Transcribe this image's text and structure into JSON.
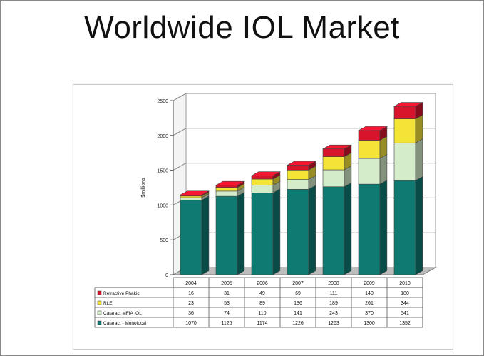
{
  "slide": {
    "title": "Worldwide IOL Market"
  },
  "chart_data": {
    "type": "bar",
    "stacked": true,
    "three_d": true,
    "title": "",
    "xlabel": "",
    "ylabel": "$millions",
    "ylim": [
      0,
      2500
    ],
    "yticks": [
      0,
      500,
      1000,
      1500,
      2000,
      2500
    ],
    "grid": true,
    "legend": "data-table-left",
    "categories": [
      "2004",
      "2005",
      "2006",
      "2007",
      "2008",
      "2009",
      "2010"
    ],
    "series": [
      {
        "name": "Cataract - Monofocal",
        "color": "#0f7a72",
        "values": [
          1070,
          1126,
          1174,
          1226,
          1263,
          1300,
          1352
        ]
      },
      {
        "name": "Cataract MFIA IOL",
        "color": "#d4ecca",
        "values": [
          36,
          74,
          110,
          141,
          243,
          370,
          541
        ]
      },
      {
        "name": "RLE",
        "color": "#f4e437",
        "values": [
          23,
          53,
          89,
          136,
          189,
          261,
          344
        ]
      },
      {
        "name": "Refractive Phakic",
        "color": "#d8142c",
        "values": [
          16,
          31,
          49,
          69,
          111,
          140,
          180
        ]
      }
    ]
  }
}
